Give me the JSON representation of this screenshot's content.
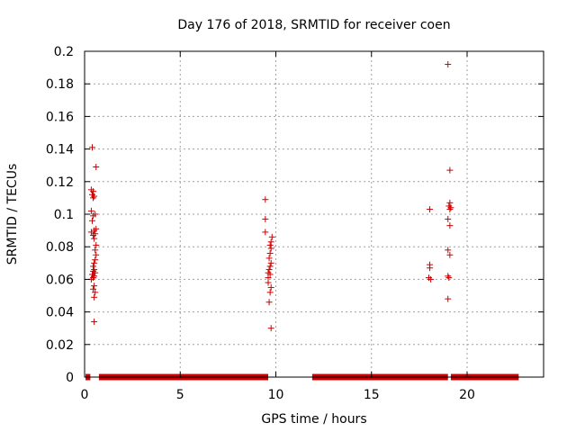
{
  "chart_data": {
    "type": "scatter",
    "title": "Day 176 of 2018, SRMTID for receiver coen",
    "xlabel": "GPS time / hours",
    "ylabel": "SRMTID / TECUs",
    "xlim": [
      0,
      24
    ],
    "ylim": [
      0,
      0.2
    ],
    "xticks": [
      0,
      5,
      10,
      15,
      20
    ],
    "xtick_labels": [
      "0",
      "5",
      "10",
      "15",
      "20"
    ],
    "yticks": [
      0,
      0.02,
      0.04,
      0.06,
      0.08,
      0.1,
      0.12,
      0.14,
      0.16,
      0.18,
      0.2
    ],
    "ytick_labels": [
      "0",
      "0.02",
      "0.04",
      "0.06",
      "0.08",
      "0.1",
      "0.12",
      "0.14",
      "0.16",
      "0.18",
      "0.2"
    ],
    "grid": true,
    "marker": "+",
    "color": "#cc0000",
    "zero_runs": [
      [
        0.05,
        0.3
      ],
      [
        0.75,
        9.6
      ],
      [
        11.9,
        19.0
      ],
      [
        19.15,
        22.7
      ]
    ],
    "series": [
      {
        "name": "SRMTID",
        "points": [
          [
            0.4,
            0.141
          ],
          [
            0.6,
            0.129
          ],
          [
            0.35,
            0.115
          ],
          [
            0.45,
            0.114
          ],
          [
            0.4,
            0.112
          ],
          [
            0.5,
            0.111
          ],
          [
            0.45,
            0.11
          ],
          [
            0.35,
            0.102
          ],
          [
            0.55,
            0.1
          ],
          [
            0.45,
            0.099
          ],
          [
            0.4,
            0.096
          ],
          [
            0.6,
            0.091
          ],
          [
            0.5,
            0.09
          ],
          [
            0.35,
            0.089
          ],
          [
            0.55,
            0.088
          ],
          [
            0.45,
            0.087
          ],
          [
            0.5,
            0.085
          ],
          [
            0.6,
            0.081
          ],
          [
            0.55,
            0.078
          ],
          [
            0.6,
            0.075
          ],
          [
            0.55,
            0.072
          ],
          [
            0.5,
            0.07
          ],
          [
            0.45,
            0.068
          ],
          [
            0.5,
            0.066
          ],
          [
            0.45,
            0.065
          ],
          [
            0.55,
            0.064
          ],
          [
            0.4,
            0.063
          ],
          [
            0.5,
            0.062
          ],
          [
            0.45,
            0.061
          ],
          [
            0.35,
            0.06
          ],
          [
            0.5,
            0.056
          ],
          [
            0.45,
            0.054
          ],
          [
            0.55,
            0.052
          ],
          [
            0.5,
            0.049
          ],
          [
            0.5,
            0.034
          ],
          [
            9.45,
            0.109
          ],
          [
            9.45,
            0.097
          ],
          [
            9.45,
            0.089
          ],
          [
            9.8,
            0.086
          ],
          [
            9.75,
            0.083
          ],
          [
            9.7,
            0.081
          ],
          [
            9.75,
            0.079
          ],
          [
            9.7,
            0.076
          ],
          [
            9.65,
            0.073
          ],
          [
            9.75,
            0.07
          ],
          [
            9.7,
            0.068
          ],
          [
            9.65,
            0.066
          ],
          [
            9.6,
            0.064
          ],
          [
            9.7,
            0.063
          ],
          [
            9.6,
            0.061
          ],
          [
            9.6,
            0.058
          ],
          [
            9.75,
            0.055
          ],
          [
            9.7,
            0.052
          ],
          [
            9.65,
            0.046
          ],
          [
            9.75,
            0.03
          ],
          [
            18.05,
            0.103
          ],
          [
            18.05,
            0.069
          ],
          [
            18.05,
            0.067
          ],
          [
            18.0,
            0.061
          ],
          [
            18.1,
            0.06
          ],
          [
            19.0,
            0.192
          ],
          [
            19.1,
            0.127
          ],
          [
            19.1,
            0.107
          ],
          [
            19.05,
            0.105
          ],
          [
            19.15,
            0.104
          ],
          [
            19.1,
            0.103
          ],
          [
            19.0,
            0.097
          ],
          [
            19.1,
            0.093
          ],
          [
            19.0,
            0.078
          ],
          [
            19.1,
            0.075
          ],
          [
            19.0,
            0.062
          ],
          [
            19.05,
            0.061
          ],
          [
            19.0,
            0.048
          ]
        ]
      }
    ]
  }
}
